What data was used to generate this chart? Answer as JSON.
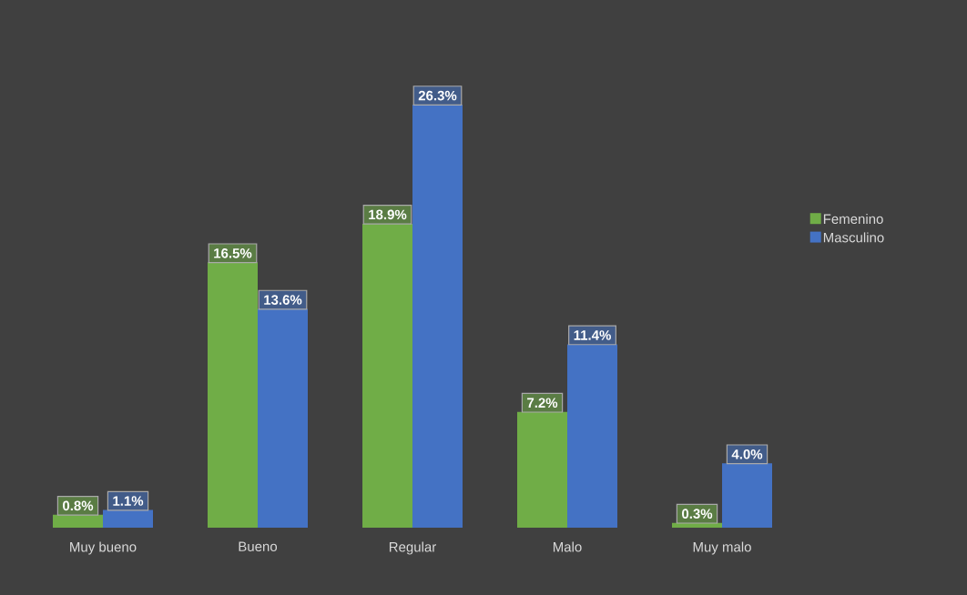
{
  "chart_data": {
    "type": "bar",
    "categories": [
      "Muy bueno",
      "Bueno",
      "Regular",
      "Malo",
      "Muy malo"
    ],
    "series": [
      {
        "name": "Femenino",
        "color": "#70ad47",
        "values": [
          0.8,
          16.5,
          18.9,
          7.2,
          0.3
        ],
        "value_labels": [
          "0.8%",
          "16.5%",
          "18.9%",
          "7.2%",
          "0.3%"
        ]
      },
      {
        "name": "Masculino",
        "color": "#4472c4",
        "values": [
          1.1,
          13.6,
          26.3,
          11.4,
          4.0
        ],
        "value_labels": [
          "1.1%",
          "13.6%",
          "26.3%",
          "11.4%",
          "4.0%"
        ]
      }
    ],
    "legend": "right"
  }
}
